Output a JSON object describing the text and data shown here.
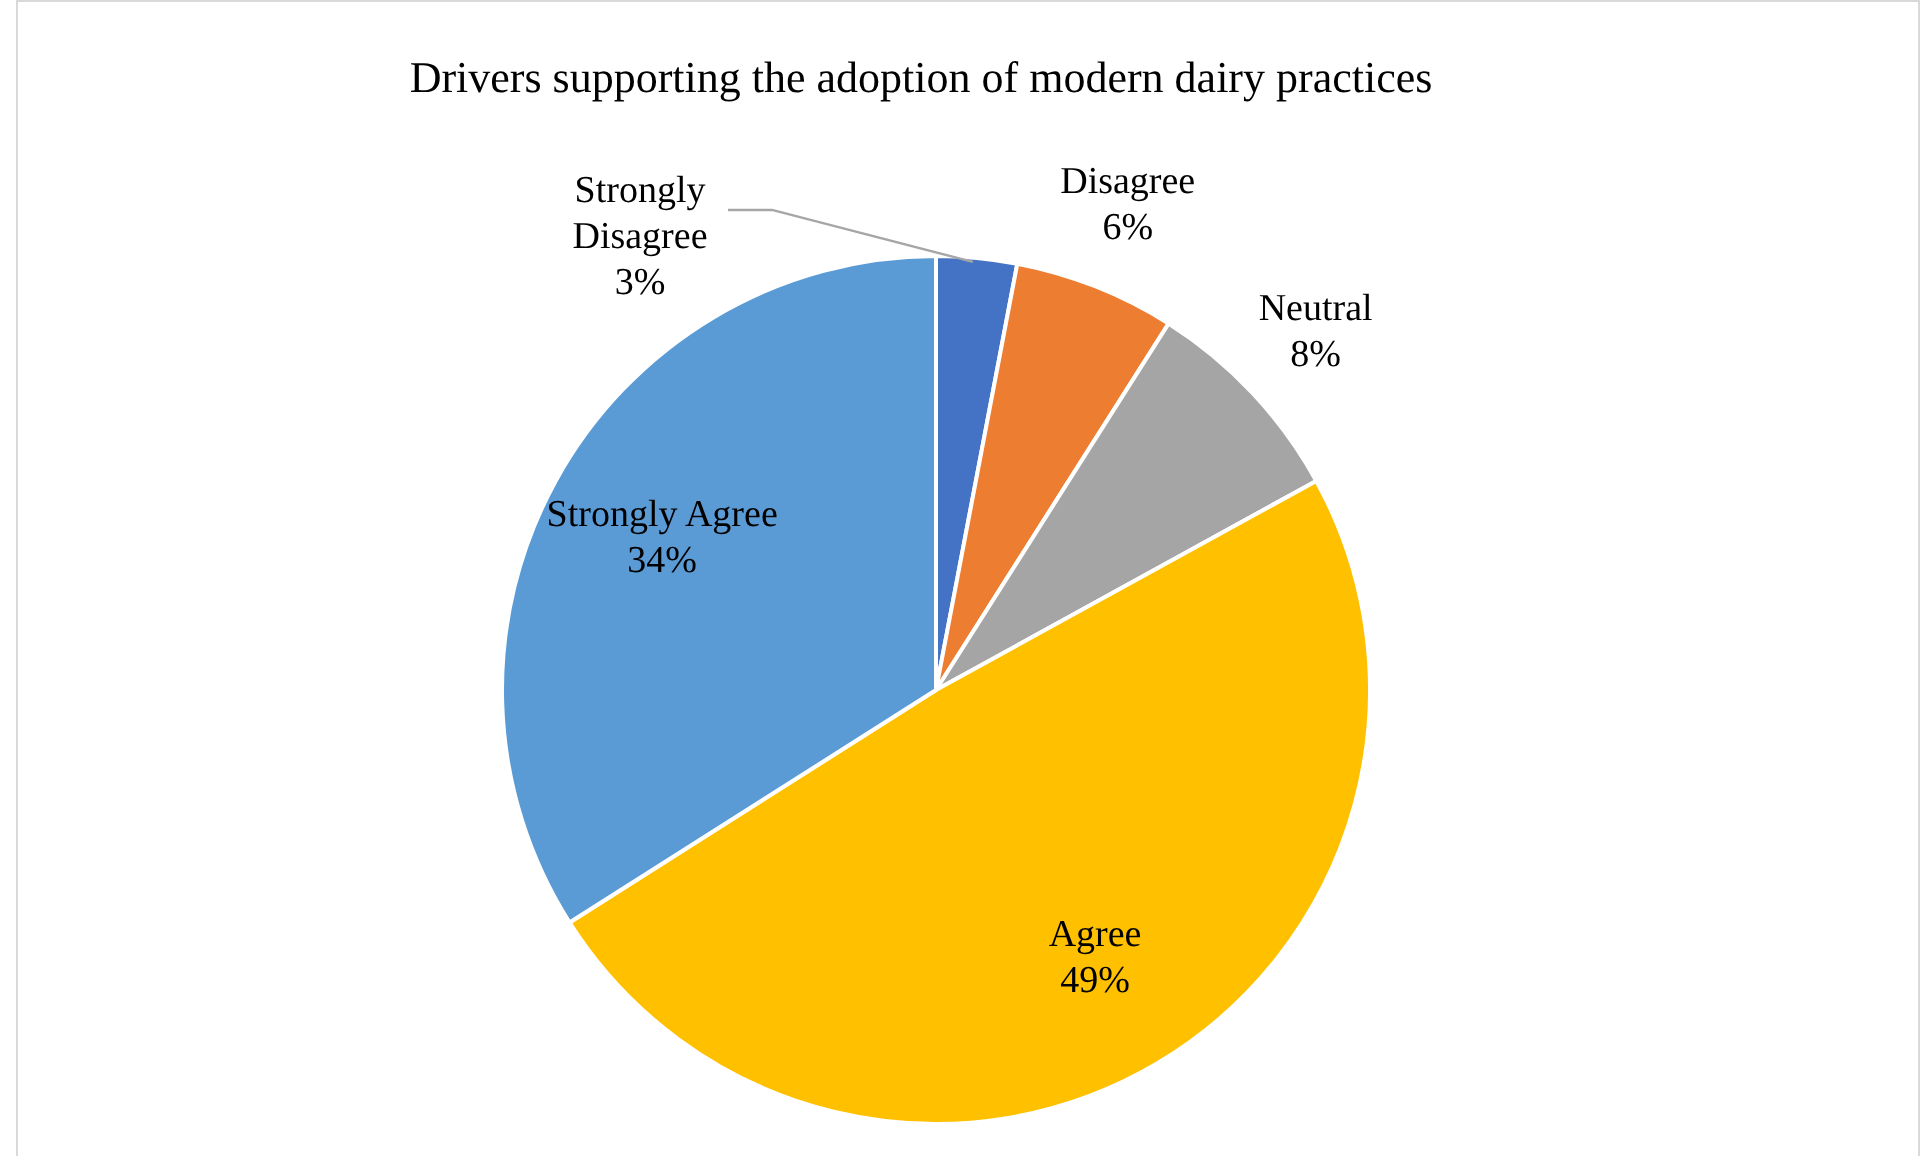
{
  "chart_data": {
    "type": "pie",
    "title": "Drivers supporting the adoption of modern dairy practices",
    "categories": [
      "Strongly Disagree",
      "Disagree",
      "Neutral",
      "Agree",
      "Strongly Agree"
    ],
    "values": [
      3,
      6,
      8,
      49,
      34
    ],
    "value_labels": [
      "3%",
      "6%",
      "8%",
      "49%",
      "34%"
    ],
    "colors": [
      "#4472c4",
      "#ed7d31",
      "#a5a5a5",
      "#ffc000",
      "#5b9bd5"
    ],
    "legend": false
  }
}
